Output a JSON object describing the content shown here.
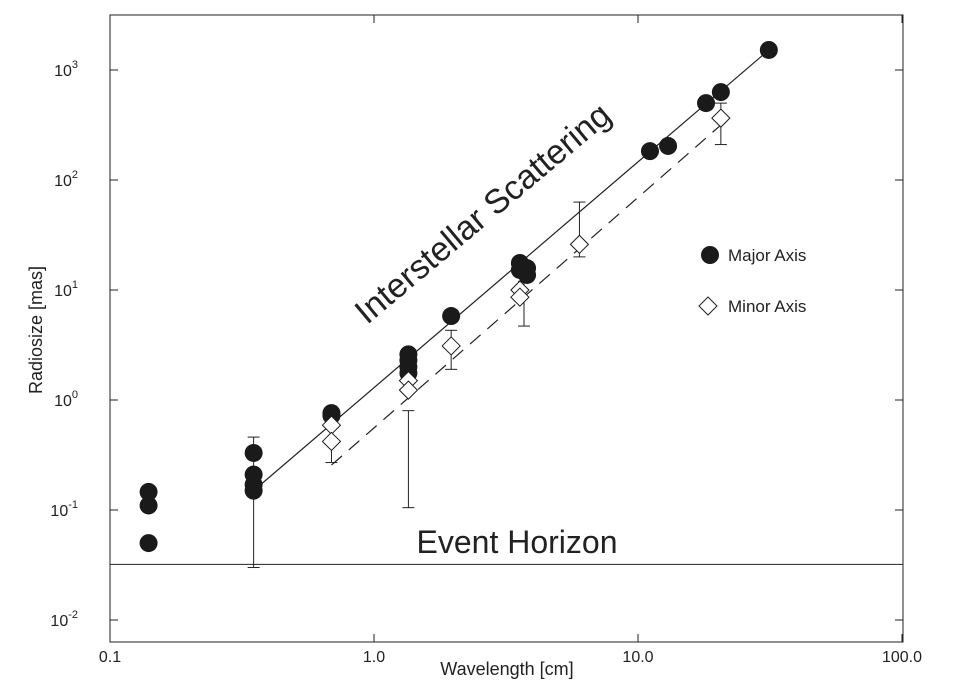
{
  "chart_data": {
    "type": "scatter",
    "xlabel": "Wavelength [cm]",
    "ylabel": "Radiosize [mas]",
    "xscale": "log",
    "yscale": "log",
    "xlim": [
      0.1,
      100
    ],
    "ylim": [
      0.0063,
      3160
    ],
    "x_ticks": [
      {
        "v": 0.1,
        "label": "0.1"
      },
      {
        "v": 1,
        "label": "1.0"
      },
      {
        "v": 10,
        "label": "10.0"
      },
      {
        "v": 100,
        "label": "100.0"
      }
    ],
    "y_ticks": [
      {
        "v": 0.01,
        "exp": "-2"
      },
      {
        "v": 0.1,
        "exp": "-1"
      },
      {
        "v": 1,
        "exp": "0"
      },
      {
        "v": 10,
        "exp": "1"
      },
      {
        "v": 100,
        "exp": "2"
      },
      {
        "v": 1000,
        "exp": "3"
      }
    ],
    "y_tick_base": "10",
    "legend_position": "right",
    "series": [
      {
        "name": "Major Axis",
        "marker": "filled-circle",
        "color": "#1a1a1a",
        "points": [
          [
            0.14,
            0.146
          ],
          [
            0.14,
            0.11
          ],
          [
            0.14,
            0.05
          ],
          [
            0.35,
            0.33
          ],
          [
            0.35,
            0.21
          ],
          [
            0.35,
            0.17
          ],
          [
            0.35,
            0.15
          ],
          [
            0.69,
            0.76
          ],
          [
            0.69,
            0.72
          ],
          [
            1.35,
            2.6
          ],
          [
            1.35,
            2.3
          ],
          [
            1.35,
            2.0
          ],
          [
            1.35,
            1.76
          ],
          [
            1.96,
            5.8
          ],
          [
            3.57,
            17.6
          ],
          [
            3.57,
            15.2
          ],
          [
            3.8,
            15.8
          ],
          [
            3.8,
            13.7
          ],
          [
            11.1,
            183
          ],
          [
            13,
            204
          ],
          [
            18.1,
            500
          ],
          [
            20.6,
            630
          ],
          [
            31.3,
            1520
          ]
        ]
      },
      {
        "name": "Minor Axis",
        "marker": "open-diamond",
        "color": "#1a1a1a",
        "points": [
          [
            0.69,
            0.59
          ],
          [
            0.69,
            0.42
          ],
          [
            1.35,
            1.5
          ],
          [
            1.35,
            1.23
          ],
          [
            1.96,
            3.1
          ],
          [
            3.57,
            10
          ],
          [
            3.57,
            8.6
          ],
          [
            6.0,
            26
          ],
          [
            20.6,
            365
          ]
        ]
      }
    ],
    "error_bars": [
      {
        "x": 0.35,
        "low": 0.03,
        "high": 0.46
      },
      {
        "x": 0.69,
        "low": 0.27,
        "high": 0.8
      },
      {
        "x": 1.35,
        "low": 0.105,
        "high": 0.8
      },
      {
        "x": 1.96,
        "low": 1.9,
        "high": 4.3
      },
      {
        "x": 3.7,
        "low": 4.7,
        "high": 12
      },
      {
        "x": 6.0,
        "low": 20,
        "high": 63
      },
      {
        "x": 20.6,
        "low": 210,
        "high": 500
      },
      {
        "x": 31.3,
        "low": 1350,
        "high": 1700
      }
    ],
    "fit_lines": [
      {
        "name": "major-fit",
        "style": "solid",
        "from": [
          0.35,
          0.15
        ],
        "to": [
          31.3,
          1520
        ]
      },
      {
        "name": "minor-fit",
        "style": "dashed",
        "from": [
          0.69,
          0.256
        ],
        "to": [
          20.6,
          316
        ]
      }
    ],
    "reference_line": {
      "label": "Event Horizon",
      "y": 0.032
    },
    "annotations": [
      {
        "text": "Interstellar Scattering"
      }
    ]
  }
}
